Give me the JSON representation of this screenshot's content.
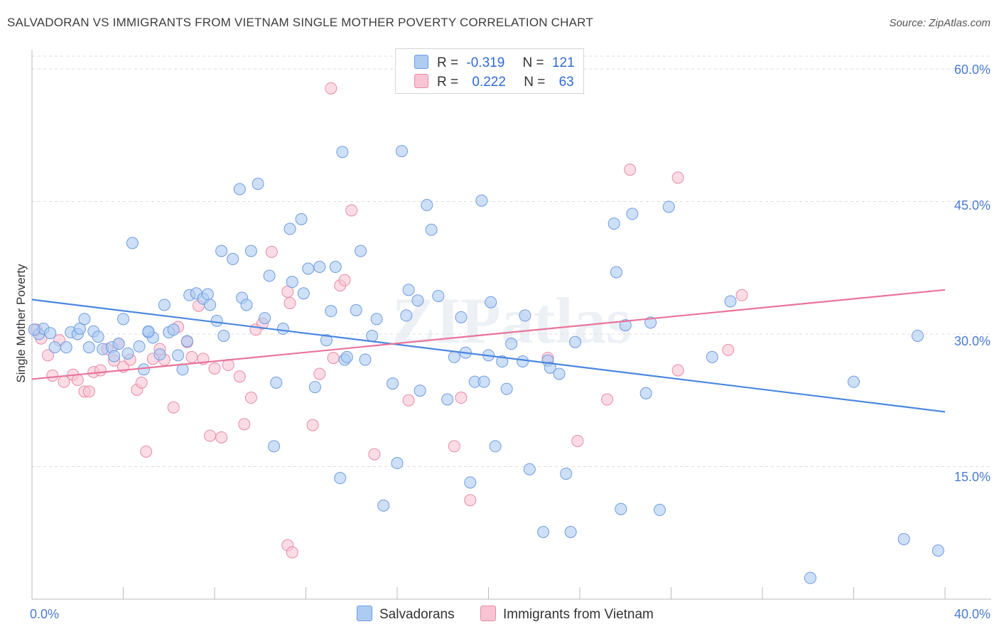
{
  "title": "SALVADORAN VS IMMIGRANTS FROM VIETNAM SINGLE MOTHER POVERTY CORRELATION CHART",
  "source": "Source: ZipAtlas.com",
  "watermark": "ZIPatlas",
  "legend": {
    "r_label": "R =",
    "n_label": "N =",
    "rows": [
      {
        "r": "-0.319",
        "n": "121",
        "color": "#aecbf2",
        "border": "#6f9be0"
      },
      {
        "r": "0.222",
        "n": "63",
        "color": "#f8c4d3",
        "border": "#e98aa7"
      }
    ]
  },
  "bottom_legend": [
    {
      "label": "Salvadorans",
      "color": "#aecbf2",
      "border": "#6f9be0"
    },
    {
      "label": "Immigrants from Vietnam",
      "color": "#f8c4d3",
      "border": "#e98aa7"
    }
  ],
  "chart_data": {
    "type": "scatter",
    "title": "SALVADORAN VS IMMIGRANTS FROM VIETNAM SINGLE MOTHER POVERTY CORRELATION CHART",
    "xlabel": "",
    "ylabel": "Single Mother Poverty",
    "xlim": [
      0,
      40
    ],
    "ylim": [
      0,
      60
    ],
    "x_tick_labels": [
      "0.0%",
      "40.0%"
    ],
    "y_ticks": [
      15,
      30,
      45,
      60
    ],
    "y_tick_labels": [
      "15.0%",
      "30.0%",
      "45.0%",
      "60.0%"
    ],
    "grid": true,
    "legend_position": "top-center",
    "colors": {
      "salvadorans": "#4a86e0",
      "vietnam": "#e8749b"
    },
    "series": [
      {
        "name": "Salvadorans",
        "r": -0.319,
        "n": 121,
        "trend": {
          "x": [
            0,
            40
          ],
          "y": [
            33.9,
            21.2
          ]
        },
        "points": [
          [
            0.3,
            30.0
          ],
          [
            0.5,
            30.6
          ],
          [
            0.8,
            30.1
          ],
          [
            1.0,
            28.5
          ],
          [
            1.5,
            28.5
          ],
          [
            1.7,
            30.2
          ],
          [
            2.0,
            30.0
          ],
          [
            2.1,
            30.6
          ],
          [
            2.3,
            31.7
          ],
          [
            2.5,
            28.5
          ],
          [
            2.7,
            30.3
          ],
          [
            2.9,
            29.7
          ],
          [
            3.1,
            28.3
          ],
          [
            3.5,
            28.5
          ],
          [
            3.6,
            27.5
          ],
          [
            3.8,
            28.9
          ],
          [
            4.0,
            31.7
          ],
          [
            4.2,
            27.8
          ],
          [
            4.4,
            40.3
          ],
          [
            4.7,
            28.6
          ],
          [
            4.9,
            26.0
          ],
          [
            5.1,
            30.2
          ],
          [
            5.3,
            29.6
          ],
          [
            5.6,
            27.7
          ],
          [
            5.8,
            33.3
          ],
          [
            6.0,
            30.2
          ],
          [
            6.2,
            30.5
          ],
          [
            6.4,
            27.6
          ],
          [
            6.6,
            26.0
          ],
          [
            6.8,
            29.2
          ],
          [
            6.9,
            34.4
          ],
          [
            7.2,
            34.6
          ],
          [
            7.5,
            34.0
          ],
          [
            7.7,
            34.5
          ],
          [
            7.8,
            33.3
          ],
          [
            8.1,
            31.5
          ],
          [
            8.4,
            29.8
          ],
          [
            8.3,
            39.4
          ],
          [
            8.8,
            38.5
          ],
          [
            9.1,
            46.4
          ],
          [
            9.2,
            34.1
          ],
          [
            9.4,
            33.3
          ],
          [
            9.6,
            39.4
          ],
          [
            9.9,
            47.0
          ],
          [
            10.2,
            31.8
          ],
          [
            10.4,
            36.6
          ],
          [
            10.7,
            24.5
          ],
          [
            10.6,
            17.3
          ],
          [
            11.0,
            30.6
          ],
          [
            11.3,
            41.9
          ],
          [
            11.4,
            35.9
          ],
          [
            11.8,
            43.0
          ],
          [
            11.9,
            34.6
          ],
          [
            12.1,
            37.4
          ],
          [
            12.4,
            24.0
          ],
          [
            12.6,
            37.6
          ],
          [
            12.9,
            29.3
          ],
          [
            13.1,
            32.6
          ],
          [
            13.3,
            37.6
          ],
          [
            13.5,
            13.7
          ],
          [
            13.7,
            27.1
          ],
          [
            13.8,
            27.4
          ],
          [
            13.6,
            50.6
          ],
          [
            14.2,
            32.7
          ],
          [
            14.4,
            39.4
          ],
          [
            14.6,
            27.1
          ],
          [
            14.9,
            29.8
          ],
          [
            15.1,
            31.7
          ],
          [
            15.4,
            10.6
          ],
          [
            15.8,
            24.4
          ],
          [
            16.0,
            15.4
          ],
          [
            16.2,
            50.7
          ],
          [
            16.4,
            32.1
          ],
          [
            16.5,
            35.0
          ],
          [
            16.9,
            33.8
          ],
          [
            17.0,
            23.6
          ],
          [
            17.3,
            44.6
          ],
          [
            17.5,
            41.8
          ],
          [
            17.8,
            34.3
          ],
          [
            18.2,
            22.6
          ],
          [
            18.5,
            27.4
          ],
          [
            18.8,
            31.9
          ],
          [
            19.0,
            27.9
          ],
          [
            19.2,
            13.2
          ],
          [
            19.4,
            24.6
          ],
          [
            19.8,
            24.6
          ],
          [
            19.7,
            45.1
          ],
          [
            20.0,
            27.6
          ],
          [
            20.1,
            33.6
          ],
          [
            20.3,
            17.3
          ],
          [
            20.6,
            26.9
          ],
          [
            20.8,
            23.8
          ],
          [
            21.0,
            28.9
          ],
          [
            21.5,
            26.9
          ],
          [
            21.6,
            32.1
          ],
          [
            21.8,
            14.7
          ],
          [
            22.4,
            7.6
          ],
          [
            22.6,
            27.0
          ],
          [
            22.7,
            26.2
          ],
          [
            23.1,
            25.5
          ],
          [
            23.4,
            14.2
          ],
          [
            23.6,
            7.6
          ],
          [
            23.8,
            29.1
          ],
          [
            25.5,
            42.5
          ],
          [
            25.6,
            37.0
          ],
          [
            25.8,
            10.2
          ],
          [
            26.0,
            31.0
          ],
          [
            26.3,
            43.6
          ],
          [
            26.9,
            23.3
          ],
          [
            27.1,
            31.3
          ],
          [
            27.5,
            10.1
          ],
          [
            27.9,
            44.4
          ],
          [
            29.8,
            27.4
          ],
          [
            30.6,
            33.7
          ],
          [
            34.1,
            2.4
          ],
          [
            36.0,
            24.6
          ],
          [
            38.2,
            6.8
          ],
          [
            38.8,
            29.8
          ],
          [
            39.7,
            5.5
          ],
          [
            0.1,
            30.5
          ],
          [
            5.1,
            30.3
          ]
        ]
      },
      {
        "name": "Immigrants from Vietnam",
        "r": 0.222,
        "n": 63,
        "trend": {
          "x": [
            0,
            40
          ],
          "y": [
            24.9,
            35.0
          ]
        },
        "points": [
          [
            0.2,
            30.5
          ],
          [
            0.4,
            29.5
          ],
          [
            0.7,
            27.6
          ],
          [
            0.9,
            25.3
          ],
          [
            1.2,
            29.3
          ],
          [
            1.4,
            24.6
          ],
          [
            1.8,
            25.4
          ],
          [
            2.0,
            24.8
          ],
          [
            2.3,
            23.5
          ],
          [
            2.5,
            23.5
          ],
          [
            2.7,
            25.7
          ],
          [
            3.0,
            25.9
          ],
          [
            3.3,
            28.3
          ],
          [
            3.6,
            27.0
          ],
          [
            3.8,
            28.9
          ],
          [
            4.0,
            26.3
          ],
          [
            4.3,
            27.1
          ],
          [
            4.6,
            23.7
          ],
          [
            4.8,
            24.5
          ],
          [
            5.0,
            16.7
          ],
          [
            5.3,
            27.2
          ],
          [
            5.6,
            28.3
          ],
          [
            5.8,
            27.1
          ],
          [
            6.2,
            21.7
          ],
          [
            6.4,
            30.8
          ],
          [
            6.8,
            29.1
          ],
          [
            7.0,
            27.4
          ],
          [
            7.3,
            33.2
          ],
          [
            7.5,
            27.2
          ],
          [
            7.8,
            18.5
          ],
          [
            8.0,
            26.1
          ],
          [
            8.3,
            18.3
          ],
          [
            8.6,
            26.5
          ],
          [
            9.1,
            25.2
          ],
          [
            9.3,
            19.8
          ],
          [
            9.6,
            22.8
          ],
          [
            9.8,
            30.5
          ],
          [
            10.1,
            31.2
          ],
          [
            10.5,
            39.3
          ],
          [
            11.2,
            34.8
          ],
          [
            11.3,
            33.5
          ],
          [
            11.2,
            6.1
          ],
          [
            11.4,
            5.3
          ],
          [
            12.3,
            19.7
          ],
          [
            12.6,
            25.5
          ],
          [
            13.1,
            57.8
          ],
          [
            13.2,
            27.3
          ],
          [
            13.5,
            35.5
          ],
          [
            13.7,
            36.1
          ],
          [
            14.0,
            44.0
          ],
          [
            15.0,
            16.4
          ],
          [
            16.5,
            22.5
          ],
          [
            18.5,
            17.3
          ],
          [
            18.8,
            22.8
          ],
          [
            19.2,
            11.2
          ],
          [
            22.6,
            27.3
          ],
          [
            23.9,
            17.9
          ],
          [
            25.2,
            22.6
          ],
          [
            26.2,
            48.6
          ],
          [
            28.3,
            47.7
          ],
          [
            28.3,
            25.9
          ],
          [
            30.5,
            28.2
          ],
          [
            31.1,
            34.4
          ]
        ]
      }
    ]
  }
}
